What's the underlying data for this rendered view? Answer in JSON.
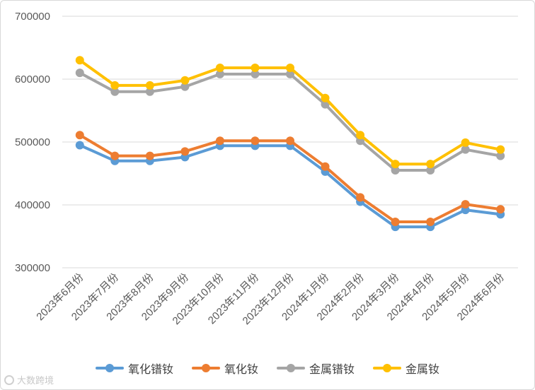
{
  "chart_data": {
    "type": "line",
    "title": "",
    "xlabel": "",
    "ylabel": "",
    "ylim": [
      300000,
      700000
    ],
    "yticks": [
      300000,
      400000,
      500000,
      600000,
      700000
    ],
    "y_tick_labels": [
      "300000",
      "400000",
      "500000",
      "600000",
      "700000"
    ],
    "grid": "horizontal",
    "legend_position": "bottom",
    "categories": [
      "2023年6月份",
      "2023年7月份",
      "2023年8月份",
      "2023年9月份",
      "2023年10月份",
      "2023年11月份",
      "2023年12月份",
      "2024年1月份",
      "2024年2月份",
      "2024年3月份",
      "2024年4月份",
      "2024年5月份",
      "2024年6月份"
    ],
    "series": [
      {
        "name": "氧化镨钕",
        "color": "#5b9bd5",
        "values": [
          495000,
          470000,
          470000,
          476000,
          494000,
          494000,
          494000,
          453000,
          405000,
          365000,
          365000,
          392000,
          385000
        ]
      },
      {
        "name": "氧化钕",
        "color": "#ed7d31",
        "values": [
          511000,
          478000,
          478000,
          485000,
          502000,
          502000,
          502000,
          461000,
          412000,
          373000,
          373000,
          401000,
          393000
        ]
      },
      {
        "name": "金属镨钕",
        "color": "#a5a5a5",
        "values": [
          610000,
          580000,
          580000,
          588000,
          608000,
          608000,
          608000,
          560000,
          502000,
          455000,
          455000,
          488000,
          478000
        ]
      },
      {
        "name": "金属钕",
        "color": "#ffc000",
        "values": [
          630000,
          590000,
          590000,
          598000,
          618000,
          618000,
          618000,
          570000,
          511000,
          465000,
          465000,
          499000,
          488000
        ]
      }
    ]
  },
  "watermark": {
    "text": "大数跨境",
    "icon": "logo-icon"
  }
}
